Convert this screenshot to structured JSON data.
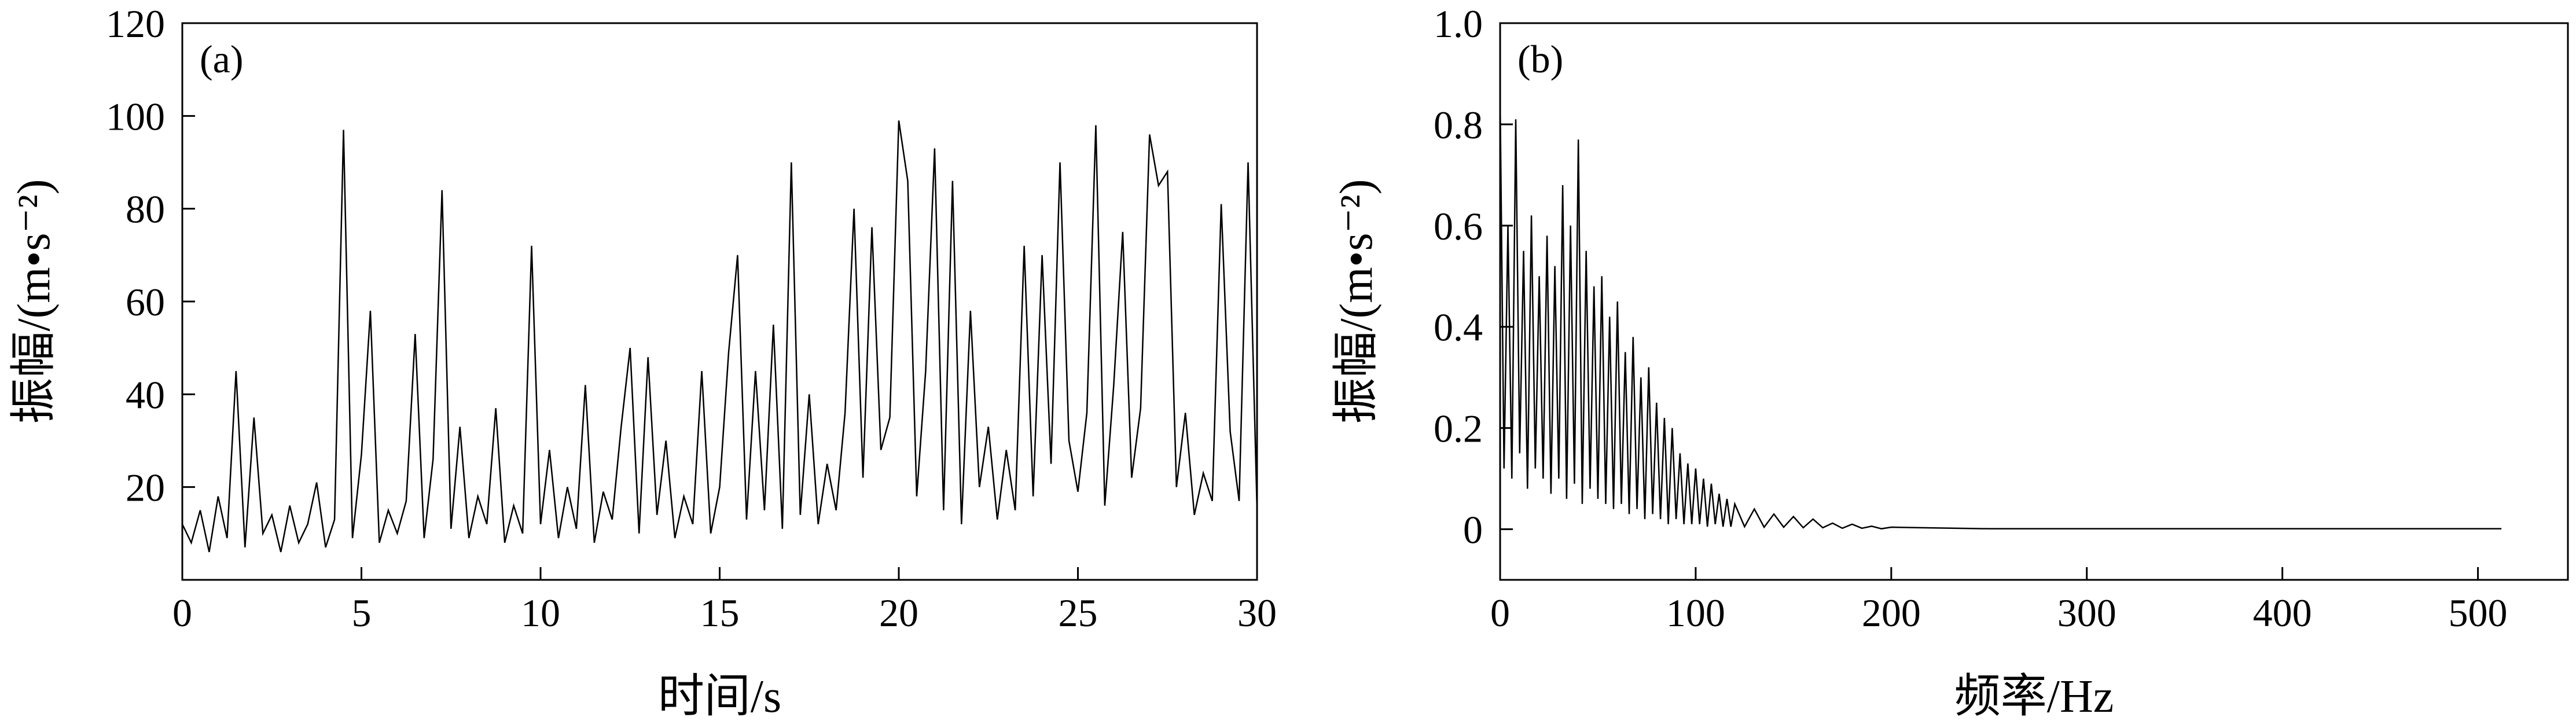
{
  "chart_data": [
    {
      "type": "line",
      "panel_label": "(a)",
      "x_label": "时间/s",
      "y_label": "振幅/(m•s⁻²)",
      "xlim": [
        0,
        30
      ],
      "xticks": [
        0,
        5,
        10,
        15,
        20,
        25,
        30
      ],
      "ylim": [
        0,
        120
      ],
      "yticks": [
        20,
        40,
        60,
        80,
        100,
        120
      ],
      "series": [
        {
          "color": "#000000",
          "x": [
            0,
            0.25,
            0.5,
            0.75,
            1,
            1.25,
            1.5,
            1.75,
            2,
            2.25,
            2.5,
            2.75,
            3,
            3.25,
            3.5,
            3.75,
            4,
            4.25,
            4.5,
            4.75,
            5,
            5.25,
            5.5,
            5.75,
            6,
            6.25,
            6.5,
            6.75,
            7,
            7.25,
            7.5,
            7.75,
            8,
            8.25,
            8.5,
            8.75,
            9,
            9.25,
            9.5,
            9.75,
            10,
            10.25,
            10.5,
            10.75,
            11,
            11.25,
            11.5,
            11.75,
            12,
            12.25,
            12.5,
            12.75,
            13,
            13.25,
            13.5,
            13.75,
            14,
            14.25,
            14.5,
            14.75,
            15,
            15.25,
            15.5,
            15.75,
            16,
            16.25,
            16.5,
            16.75,
            17,
            17.25,
            17.5,
            17.75,
            18,
            18.25,
            18.5,
            18.75,
            19,
            19.25,
            19.5,
            19.75,
            20,
            20.25,
            20.5,
            20.75,
            21,
            21.25,
            21.5,
            21.75,
            22,
            22.25,
            22.5,
            22.75,
            23,
            23.25,
            23.5,
            23.75,
            24,
            24.25,
            24.5,
            24.75,
            25,
            25.25,
            25.5,
            25.75,
            26,
            26.25,
            26.5,
            26.75,
            27,
            27.25,
            27.5,
            27.75,
            28,
            28.25,
            28.5,
            28.75,
            29,
            29.25,
            29.5,
            29.75,
            30
          ],
          "values": [
            12,
            8,
            15,
            6,
            18,
            9,
            45,
            7,
            35,
            10,
            14,
            6,
            16,
            8,
            12,
            21,
            7,
            13,
            97,
            9,
            27,
            58,
            8,
            15,
            10,
            17,
            53,
            9,
            26,
            84,
            11,
            33,
            9,
            18,
            12,
            37,
            8,
            16,
            10,
            72,
            12,
            28,
            9,
            20,
            11,
            42,
            8,
            19,
            13,
            33,
            50,
            10,
            48,
            14,
            30,
            9,
            18,
            12,
            45,
            10,
            20,
            49,
            70,
            13,
            45,
            15,
            55,
            11,
            90,
            14,
            40,
            12,
            25,
            15,
            36,
            80,
            22,
            76,
            28,
            35,
            99,
            86,
            18,
            45,
            93,
            15,
            86,
            12,
            58,
            20,
            33,
            13,
            28,
            15,
            72,
            18,
            70,
            25,
            90,
            30,
            19,
            36,
            98,
            16,
            42,
            75,
            22,
            37,
            96,
            85,
            88,
            20,
            36,
            14,
            23,
            17,
            81,
            32,
            17,
            90,
            15
          ]
        }
      ]
    },
    {
      "type": "line",
      "panel_label": "(b)",
      "x_label": "频率/Hz",
      "y_label": "振幅/(m•s⁻²)",
      "xlim": [
        0,
        546
      ],
      "xticks": [
        0,
        100,
        200,
        300,
        400,
        500
      ],
      "ylim": [
        -0.1,
        1.0
      ],
      "yticks": [
        0,
        0.2,
        0.4,
        0.6,
        0.8,
        {
          "value": 1,
          "label": "1.0"
        }
      ],
      "series": [
        {
          "color": "#000000",
          "x": [
            0,
            2,
            4,
            6,
            8,
            10,
            12,
            14,
            16,
            18,
            20,
            22,
            24,
            26,
            28,
            30,
            32,
            34,
            36,
            38,
            40,
            42,
            44,
            46,
            48,
            50,
            52,
            54,
            56,
            58,
            60,
            62,
            64,
            66,
            68,
            70,
            72,
            74,
            76,
            78,
            80,
            82,
            84,
            86,
            88,
            90,
            92,
            94,
            96,
            98,
            100,
            102,
            104,
            106,
            108,
            110,
            112,
            114,
            116,
            118,
            120,
            125,
            130,
            135,
            140,
            145,
            150,
            155,
            160,
            165,
            170,
            175,
            180,
            185,
            190,
            195,
            200,
            250,
            300,
            350,
            400,
            450,
            512
          ],
          "values": [
            0.85,
            0.12,
            0.6,
            0.1,
            0.81,
            0.15,
            0.55,
            0.08,
            0.62,
            0.12,
            0.5,
            0.1,
            0.58,
            0.07,
            0.52,
            0.1,
            0.68,
            0.06,
            0.6,
            0.09,
            0.77,
            0.05,
            0.55,
            0.08,
            0.48,
            0.06,
            0.5,
            0.05,
            0.42,
            0.04,
            0.45,
            0.05,
            0.35,
            0.03,
            0.38,
            0.04,
            0.3,
            0.02,
            0.32,
            0.03,
            0.25,
            0.02,
            0.22,
            0.01,
            0.2,
            0.02,
            0.15,
            0.01,
            0.13,
            0.01,
            0.12,
            0.01,
            0.1,
            0.005,
            0.09,
            0.01,
            0.07,
            0.005,
            0.06,
            0.005,
            0.05,
            0.005,
            0.04,
            0.004,
            0.03,
            0.004,
            0.025,
            0.003,
            0.02,
            0.003,
            0.012,
            0.002,
            0.01,
            0.002,
            0.006,
            0.001,
            0.004,
            0.001,
            0.001,
            0.001,
            0.001,
            0.001,
            0.001
          ]
        }
      ]
    }
  ]
}
